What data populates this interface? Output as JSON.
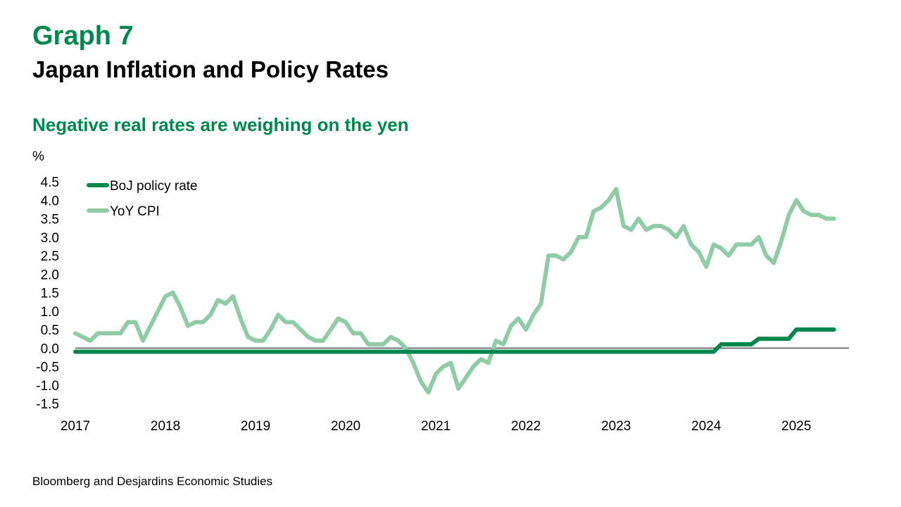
{
  "header": {
    "graph_label": "Graph 7",
    "title": "Japan Inflation and Policy Rates",
    "subtitle": "Negative real rates are weighing on the yen"
  },
  "source": "Bloomberg and Desjardins Economic Studies",
  "colors": {
    "accent": "#00874E",
    "policy_rate": "#00874E",
    "cpi": "#8FCCA6"
  },
  "chart_data": {
    "type": "line",
    "ylabel": "%",
    "ylim": [
      -1.5,
      4.5
    ],
    "yticks": [
      -1.5,
      -1.0,
      -0.5,
      0.0,
      0.5,
      1.0,
      1.5,
      2.0,
      2.5,
      3.0,
      3.5,
      4.0,
      4.5
    ],
    "ytick_labels": [
      "-1.5",
      "-1.0",
      "-0.5",
      "0.0",
      "0.5",
      "1.0",
      "1.5",
      "2.0",
      "2.5",
      "3.0",
      "3.5",
      "4.0",
      "4.5"
    ],
    "x_ticks": [
      "2017",
      "2018",
      "2019",
      "2020",
      "2021",
      "2022",
      "2023",
      "2024",
      "2025"
    ],
    "xlim": [
      "2017-01",
      "2025-08"
    ],
    "grid": false,
    "legend_position": "top-left",
    "series": [
      {
        "name": "BoJ policy rate",
        "color": "#00874E",
        "points": [
          [
            "2017-01",
            -0.1
          ],
          [
            "2024-02",
            -0.1
          ],
          [
            "2024-03",
            0.1
          ],
          [
            "2024-07",
            0.1
          ],
          [
            "2024-08",
            0.25
          ],
          [
            "2024-12",
            0.25
          ],
          [
            "2025-01",
            0.5
          ],
          [
            "2025-06",
            0.5
          ]
        ]
      },
      {
        "name": "YoY CPI",
        "color": "#8FCCA6",
        "points": [
          [
            "2017-01",
            0.4
          ],
          [
            "2017-03",
            0.2
          ],
          [
            "2017-04",
            0.4
          ],
          [
            "2017-07",
            0.4
          ],
          [
            "2017-08",
            0.7
          ],
          [
            "2017-09",
            0.7
          ],
          [
            "2017-10",
            0.2
          ],
          [
            "2017-11",
            0.6
          ],
          [
            "2017-12",
            1.0
          ],
          [
            "2018-01",
            1.4
          ],
          [
            "2018-02",
            1.5
          ],
          [
            "2018-03",
            1.1
          ],
          [
            "2018-04",
            0.6
          ],
          [
            "2018-05",
            0.7
          ],
          [
            "2018-06",
            0.7
          ],
          [
            "2018-07",
            0.9
          ],
          [
            "2018-08",
            1.3
          ],
          [
            "2018-09",
            1.2
          ],
          [
            "2018-10",
            1.4
          ],
          [
            "2018-11",
            0.8
          ],
          [
            "2018-12",
            0.3
          ],
          [
            "2019-01",
            0.2
          ],
          [
            "2019-02",
            0.2
          ],
          [
            "2019-03",
            0.5
          ],
          [
            "2019-04",
            0.9
          ],
          [
            "2019-05",
            0.7
          ],
          [
            "2019-06",
            0.7
          ],
          [
            "2019-07",
            0.5
          ],
          [
            "2019-08",
            0.3
          ],
          [
            "2019-09",
            0.2
          ],
          [
            "2019-10",
            0.2
          ],
          [
            "2019-11",
            0.5
          ],
          [
            "2019-12",
            0.8
          ],
          [
            "2020-01",
            0.7
          ],
          [
            "2020-02",
            0.4
          ],
          [
            "2020-03",
            0.4
          ],
          [
            "2020-04",
            0.1
          ],
          [
            "2020-05",
            0.1
          ],
          [
            "2020-06",
            0.1
          ],
          [
            "2020-07",
            0.3
          ],
          [
            "2020-08",
            0.2
          ],
          [
            "2020-09",
            0.0
          ],
          [
            "2020-10",
            -0.4
          ],
          [
            "2020-11",
            -0.9
          ],
          [
            "2020-12",
            -1.2
          ],
          [
            "2021-01",
            -0.7
          ],
          [
            "2021-02",
            -0.5
          ],
          [
            "2021-03",
            -0.4
          ],
          [
            "2021-04",
            -1.1
          ],
          [
            "2021-05",
            -0.8
          ],
          [
            "2021-06",
            -0.5
          ],
          [
            "2021-07",
            -0.3
          ],
          [
            "2021-08",
            -0.4
          ],
          [
            "2021-09",
            0.2
          ],
          [
            "2021-10",
            0.1
          ],
          [
            "2021-11",
            0.6
          ],
          [
            "2021-12",
            0.8
          ],
          [
            "2022-01",
            0.5
          ],
          [
            "2022-02",
            0.9
          ],
          [
            "2022-03",
            1.2
          ],
          [
            "2022-04",
            2.5
          ],
          [
            "2022-05",
            2.5
          ],
          [
            "2022-06",
            2.4
          ],
          [
            "2022-07",
            2.6
          ],
          [
            "2022-08",
            3.0
          ],
          [
            "2022-09",
            3.0
          ],
          [
            "2022-10",
            3.7
          ],
          [
            "2022-11",
            3.8
          ],
          [
            "2022-12",
            4.0
          ],
          [
            "2023-01",
            4.3
          ],
          [
            "2023-02",
            3.3
          ],
          [
            "2023-03",
            3.2
          ],
          [
            "2023-04",
            3.5
          ],
          [
            "2023-05",
            3.2
          ],
          [
            "2023-06",
            3.3
          ],
          [
            "2023-07",
            3.3
          ],
          [
            "2023-08",
            3.2
          ],
          [
            "2023-09",
            3.0
          ],
          [
            "2023-10",
            3.3
          ],
          [
            "2023-11",
            2.8
          ],
          [
            "2023-12",
            2.6
          ],
          [
            "2024-01",
            2.2
          ],
          [
            "2024-02",
            2.8
          ],
          [
            "2024-03",
            2.7
          ],
          [
            "2024-04",
            2.5
          ],
          [
            "2024-05",
            2.8
          ],
          [
            "2024-06",
            2.8
          ],
          [
            "2024-07",
            2.8
          ],
          [
            "2024-08",
            3.0
          ],
          [
            "2024-09",
            2.5
          ],
          [
            "2024-10",
            2.3
          ],
          [
            "2024-11",
            2.9
          ],
          [
            "2024-12",
            3.6
          ],
          [
            "2025-01",
            4.0
          ],
          [
            "2025-02",
            3.7
          ],
          [
            "2025-03",
            3.6
          ],
          [
            "2025-04",
            3.6
          ],
          [
            "2025-05",
            3.5
          ],
          [
            "2025-06",
            3.5
          ]
        ]
      }
    ]
  }
}
